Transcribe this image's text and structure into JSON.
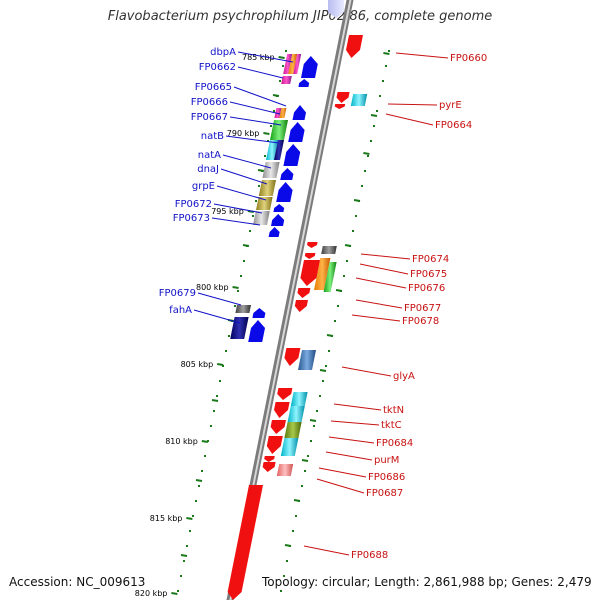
{
  "title": "Flavobacterium psychrophilum JIP02/86, complete genome",
  "accession": "Accession: NC_009613",
  "summary": "Topology: circular; Length: 2,861,988 bp; Genes: 2,479",
  "colors": {
    "forward_label": "#1212c8",
    "reverse_label": "#c81212",
    "ticks": "#1a7a1a"
  },
  "scale_ticks": [
    {
      "label": "785 kbp"
    },
    {
      "label": "790 kbp"
    },
    {
      "label": "795 kbp"
    },
    {
      "label": "800 kbp"
    },
    {
      "label": "805 kbp"
    },
    {
      "label": "810 kbp"
    },
    {
      "label": "815 kbp"
    },
    {
      "label": "820 kbp"
    }
  ],
  "forward_genes": [
    {
      "name": "dbpA"
    },
    {
      "name": "FP0662"
    },
    {
      "name": "FP0665"
    },
    {
      "name": "FP0666"
    },
    {
      "name": "FP0667"
    },
    {
      "name": "natB"
    },
    {
      "name": "natA"
    },
    {
      "name": "dnaJ"
    },
    {
      "name": "grpE"
    },
    {
      "name": "FP0672"
    },
    {
      "name": "FP0673"
    },
    {
      "name": "FP0679"
    },
    {
      "name": "fahA"
    }
  ],
  "reverse_genes": [
    {
      "name": "FP0660"
    },
    {
      "name": "pyrE"
    },
    {
      "name": "FP0664"
    },
    {
      "name": "FP0674"
    },
    {
      "name": "FP0675"
    },
    {
      "name": "FP0676"
    },
    {
      "name": "FP0677"
    },
    {
      "name": "FP0678"
    },
    {
      "name": "glyA"
    },
    {
      "name": "tktN"
    },
    {
      "name": "tktC"
    },
    {
      "name": "FP0684"
    },
    {
      "name": "purM"
    },
    {
      "name": "FP0686"
    },
    {
      "name": "FP0687"
    },
    {
      "name": "FP0688"
    }
  ]
}
